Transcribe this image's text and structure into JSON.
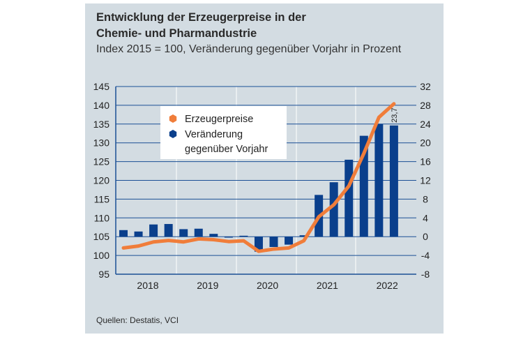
{
  "chart_data": {
    "type": "bar+line",
    "title": "Entwicklung der Erzeugerpreise in der Chemie- und Pharmandustrie",
    "title_lines": [
      "Entwicklung der Erzeugerpreise in der",
      "Chemie- und Pharmandustrie"
    ],
    "subtitle": "Index 2015 = 100, Veränderung gegenüber Vorjahr in Prozent",
    "source": "Quellen: Destatis, VCI",
    "x_tick_labels": [
      "2018",
      "2019",
      "2020",
      "2021",
      "2022"
    ],
    "categories": [
      "2018 Q1",
      "2018 Q2",
      "2018 Q3",
      "2018 Q4",
      "2019 Q1",
      "2019 Q2",
      "2019 Q3",
      "2019 Q4",
      "2020 Q1",
      "2020 Q2",
      "2020 Q3",
      "2020 Q4",
      "2021 Q1",
      "2021 Q2",
      "2021 Q3",
      "2021 Q4",
      "2022 Q1",
      "2022 Q2",
      "2022 Q3"
    ],
    "left_axis": {
      "ylim": [
        95,
        145
      ],
      "ticks": [
        95,
        100,
        105,
        110,
        115,
        120,
        125,
        130,
        135,
        140,
        145
      ]
    },
    "right_axis": {
      "ylim": [
        -8,
        32
      ],
      "ticks": [
        -8,
        -4,
        0,
        4,
        8,
        12,
        16,
        20,
        24,
        28,
        32
      ]
    },
    "grid": true,
    "legend_placement": "top-left",
    "series": [
      {
        "name": "Erzeugerpreise",
        "type": "line",
        "axis": "left",
        "color": "#f07d3a",
        "values": [
          102.0,
          102.5,
          103.6,
          104.0,
          103.6,
          104.4,
          104.2,
          103.7,
          103.9,
          101.1,
          101.7,
          102.0,
          103.9,
          110.3,
          113.5,
          118.5,
          127.2,
          136.8,
          140.4
        ]
      },
      {
        "name": "Veränderung gegenüber Vorjahr",
        "legend_lines": [
          "Veränderung",
          "gegenüber Vorjahr"
        ],
        "type": "bar",
        "axis": "right",
        "color": "#0a3f8c",
        "values": [
          1.4,
          1.1,
          2.6,
          2.7,
          1.6,
          1.7,
          0.6,
          -0.2,
          0.2,
          -3.2,
          -2.2,
          -1.7,
          0.3,
          8.9,
          11.6,
          16.4,
          21.5,
          24.0,
          23.7
        ]
      }
    ],
    "annotations": [
      {
        "category": "2022 Q3",
        "text": "23,7"
      }
    ]
  }
}
